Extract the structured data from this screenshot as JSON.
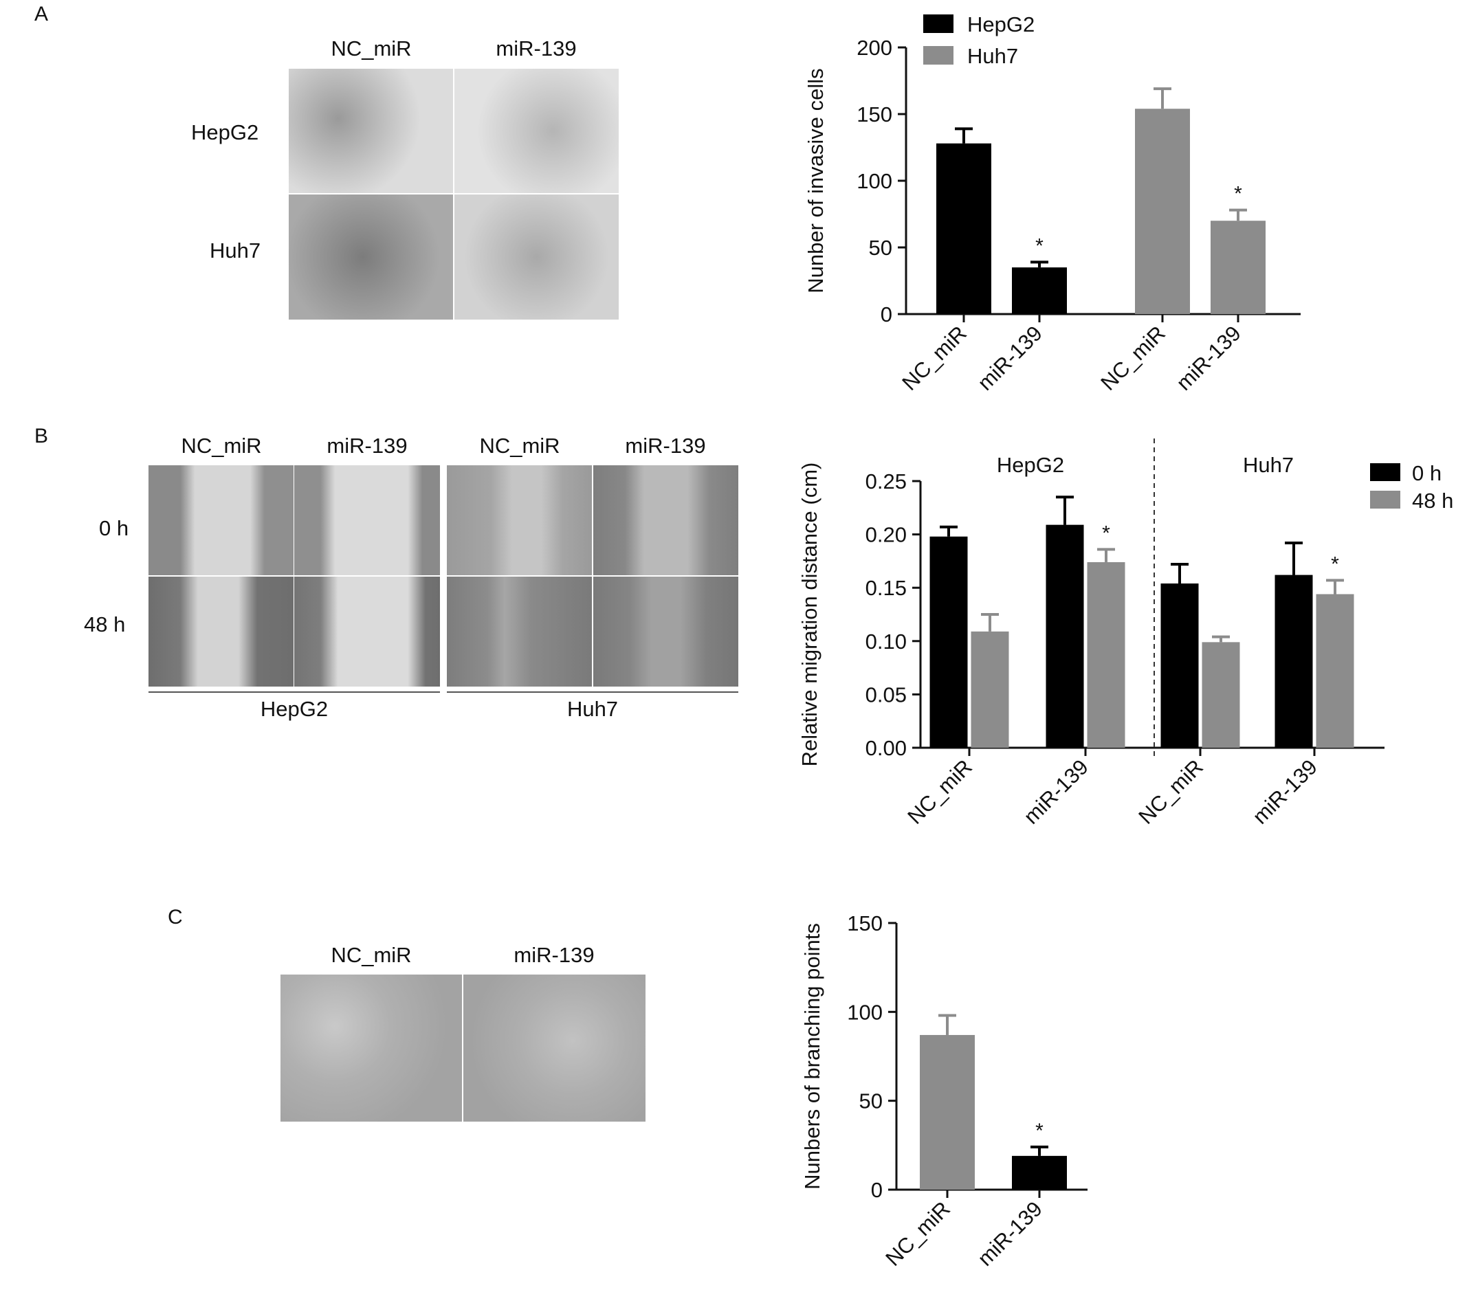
{
  "panel_letters": [
    "A",
    "B",
    "C"
  ],
  "panelA": {
    "col_labels": [
      "NC_miR",
      "miR-139"
    ],
    "row_labels": [
      "HepG2",
      "Huh7"
    ]
  },
  "panelB": {
    "col_labels": [
      "NC_miR",
      "miR-139",
      "NC_miR",
      "miR-139"
    ],
    "row_labels": [
      "0 h",
      "48 h"
    ],
    "group_labels": [
      "HepG2",
      "Huh7"
    ]
  },
  "panelC": {
    "col_labels": [
      "NC_miR",
      "miR-139"
    ]
  },
  "colors": {
    "black": "#000000",
    "gray": "#8c8c8c"
  },
  "chart_data": [
    {
      "type": "bar",
      "title": "",
      "ylabel": "Nunber of invasive cells",
      "xlabel": "",
      "ylim": [
        0,
        200
      ],
      "yticks": [
        0,
        50,
        100,
        150,
        200
      ],
      "legend": [
        "HepG2",
        "Huh7"
      ],
      "legend_position": "top-left",
      "categories": [
        "NC_miR",
        "miR-139",
        "NC_miR",
        "miR-139"
      ],
      "series": [
        {
          "name": "HepG2",
          "color": "#000000",
          "values": [
            128,
            35,
            null,
            null
          ],
          "errors": [
            11,
            4,
            null,
            null
          ],
          "significance": [
            "",
            "*",
            "",
            ""
          ]
        },
        {
          "name": "Huh7",
          "color": "#8c8c8c",
          "values": [
            null,
            null,
            154,
            70
          ],
          "errors": [
            null,
            null,
            15,
            8
          ],
          "significance": [
            "",
            "",
            "",
            "*"
          ]
        }
      ]
    },
    {
      "type": "bar",
      "title": "",
      "ylabel": "Relative migration distance (cm)",
      "xlabel": "",
      "ylim": [
        0,
        0.25
      ],
      "yticks": [
        "0.00",
        "0.05",
        "0.10",
        "0.15",
        "0.20",
        "0.25"
      ],
      "legend": [
        "0 h",
        "48 h"
      ],
      "legend_position": "top-right",
      "groups": [
        "HepG2",
        "Huh7"
      ],
      "categories": [
        "NC_miR",
        "miR-139",
        "NC_miR",
        "miR-139"
      ],
      "series": [
        {
          "name": "0 h",
          "color": "#000000",
          "values": [
            0.198,
            0.209,
            0.154,
            0.162
          ],
          "errors": [
            0.009,
            0.026,
            0.018,
            0.03
          ],
          "significance": [
            "",
            "",
            "",
            ""
          ]
        },
        {
          "name": "48 h",
          "color": "#8c8c8c",
          "values": [
            0.109,
            0.174,
            0.099,
            0.144
          ],
          "errors": [
            0.016,
            0.012,
            0.005,
            0.013
          ],
          "significance": [
            "",
            "*",
            "",
            "*"
          ]
        }
      ]
    },
    {
      "type": "bar",
      "title": "",
      "ylabel": "Nunbers of branching points",
      "xlabel": "",
      "ylim": [
        0,
        150
      ],
      "yticks": [
        0,
        50,
        100,
        150
      ],
      "categories": [
        "NC_miR",
        "miR-139"
      ],
      "colors": [
        "#8c8c8c",
        "#000000"
      ],
      "values": [
        87,
        19
      ],
      "errors": [
        11,
        5
      ],
      "significance": [
        "",
        "*"
      ]
    }
  ]
}
